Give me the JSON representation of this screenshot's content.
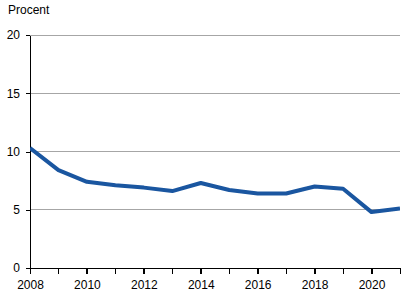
{
  "chart_data": {
    "type": "line",
    "y_label": "Procent",
    "x": [
      2008,
      2009,
      2010,
      2011,
      2012,
      2013,
      2014,
      2015,
      2016,
      2017,
      2018,
      2019,
      2020,
      2021
    ],
    "values": [
      10.3,
      8.4,
      7.4,
      7.1,
      6.9,
      6.6,
      7.3,
      6.7,
      6.4,
      6.4,
      7.0,
      6.8,
      4.8,
      5.1
    ],
    "color": "#1a56a0",
    "xlim": [
      2008,
      2021
    ],
    "xticks": [
      2008,
      2010,
      2012,
      2014,
      2016,
      2018,
      2020
    ],
    "ylim": [
      0,
      20
    ],
    "yticks": [
      0,
      5,
      10,
      15,
      20
    ],
    "grid": true
  }
}
